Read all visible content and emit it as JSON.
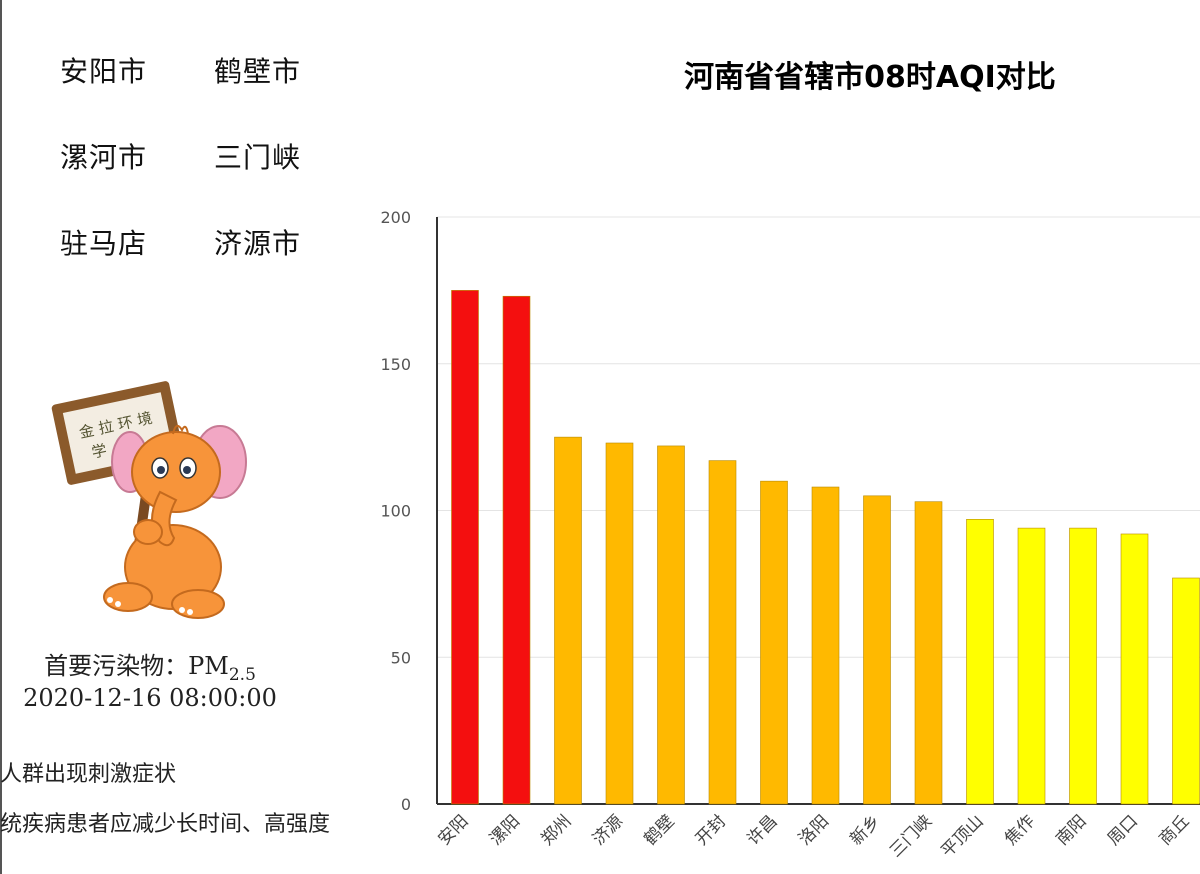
{
  "cities": [
    "安阳市",
    "鹤壁市",
    "漯河市",
    "三门峡",
    "驻马店",
    "济源市"
  ],
  "pollutant": {
    "label": "首要污染物：",
    "name": "PM",
    "subscript": "2.5",
    "datetime": "2020-12-16 08:00:00"
  },
  "advice": {
    "line1": "人群出现刺激症状",
    "line2": "统疾病患者应减少长时间、高强度"
  },
  "chart_data": {
    "type": "bar",
    "title": "河南省省辖市08时AQI对比",
    "categories": [
      "安阳",
      "漯阳",
      "郑州",
      "济源",
      "鹤壁",
      "开封",
      "许昌",
      "洛阳",
      "新乡",
      "三门峡",
      "平顶山",
      "焦作",
      "南阳",
      "周口",
      "商丘"
    ],
    "values": [
      175,
      173,
      125,
      123,
      122,
      117,
      110,
      108,
      105,
      103,
      97,
      94,
      94,
      92,
      77
    ],
    "colors": [
      "#f40f0f",
      "#f40f0f",
      "#ffb900",
      "#ffb900",
      "#ffb900",
      "#ffb900",
      "#ffb900",
      "#ffb900",
      "#ffb900",
      "#ffb900",
      "#ffff00",
      "#ffff00",
      "#ffff00",
      "#ffff00",
      "#ffff00"
    ],
    "yticks": [
      0,
      50,
      100,
      150,
      200
    ],
    "ylim": [
      0,
      200
    ],
    "grid": true
  }
}
